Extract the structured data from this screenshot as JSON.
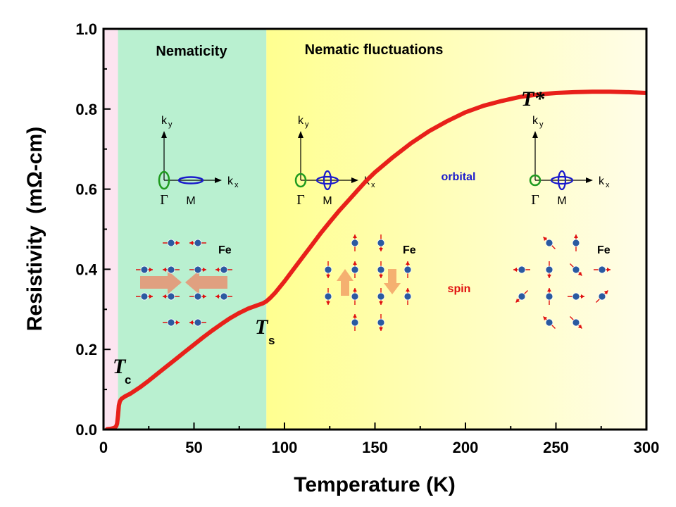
{
  "colors": {
    "curve": "#e8201a",
    "nematicity_band": "#b9f0d0",
    "fluct_band_start": "#ffff90",
    "fluct_band_end": "#fffde8",
    "sc_band": "#fce4f0",
    "atom": "#2a5aa0",
    "spin_arrow": "#e01010",
    "gamma_pocket": "#1f9a1f",
    "m_pocket": "#1a1acc",
    "strain_arrow": "#e0a080",
    "spin_block_arrow": "#f5b070"
  },
  "chart_data": {
    "type": "line",
    "xlabel": "Temperature (K)",
    "ylabel_main": "Resistivity",
    "ylabel_unit": "(mΩ-cm)",
    "xlim": [
      0,
      300
    ],
    "ylim": [
      0,
      1.0
    ],
    "xticks": [
      0,
      50,
      100,
      150,
      200,
      250,
      300
    ],
    "xtick_labels": [
      "0",
      "50",
      "100",
      "150",
      "200",
      "250",
      "300"
    ],
    "yticks": [
      0.0,
      0.2,
      0.4,
      0.6,
      0.8,
      1.0
    ],
    "ytick_labels": [
      "0.0",
      "0.2",
      "0.4",
      "0.6",
      "0.8",
      "1.0"
    ],
    "series": [
      {
        "x": [
          2,
          4,
          6,
          7,
          7.5,
          8,
          8.5,
          9,
          9.5,
          10,
          12,
          15,
          20,
          25,
          30,
          35,
          40,
          45,
          50,
          55,
          60,
          65,
          70,
          75,
          80,
          85,
          88,
          90,
          92,
          95,
          100,
          105,
          110,
          115,
          120,
          125,
          130,
          135,
          140,
          145,
          150,
          160,
          170,
          180,
          190,
          200,
          210,
          220,
          230,
          240,
          250,
          260,
          270,
          280,
          290,
          300
        ],
        "y": [
          0.001,
          0.002,
          0.004,
          0.008,
          0.015,
          0.035,
          0.06,
          0.07,
          0.074,
          0.077,
          0.083,
          0.09,
          0.105,
          0.122,
          0.14,
          0.158,
          0.176,
          0.194,
          0.212,
          0.23,
          0.247,
          0.263,
          0.278,
          0.291,
          0.302,
          0.31,
          0.315,
          0.32,
          0.328,
          0.342,
          0.37,
          0.4,
          0.43,
          0.46,
          0.49,
          0.518,
          0.545,
          0.57,
          0.595,
          0.62,
          0.642,
          0.68,
          0.715,
          0.745,
          0.77,
          0.792,
          0.808,
          0.82,
          0.83,
          0.836,
          0.84,
          0.842,
          0.843,
          0.843,
          0.842,
          0.84
        ]
      }
    ],
    "regions": [
      {
        "label": "",
        "x_start": 0,
        "x_end": 8
      },
      {
        "label": "Nematicity",
        "x_start": 8,
        "x_end": 90
      },
      {
        "label": "Nematic fluctuations",
        "x_start": 90,
        "x_end": 300
      }
    ],
    "annotations": {
      "tc": {
        "main": "T",
        "sub": "c",
        "x": 7,
        "y": 0.15
      },
      "ts": {
        "main": "T",
        "sub": "s",
        "x": 90,
        "y": 0.24
      },
      "tstar": {
        "main": "T*",
        "x": 240,
        "y": 0.85
      }
    },
    "insets": {
      "ky": "k",
      "ky_sub": "y",
      "kx": "k",
      "kx_sub": "x",
      "gamma": "Γ",
      "m": "M",
      "fe": "Fe",
      "orbital": "orbital",
      "spin": "spin"
    }
  }
}
